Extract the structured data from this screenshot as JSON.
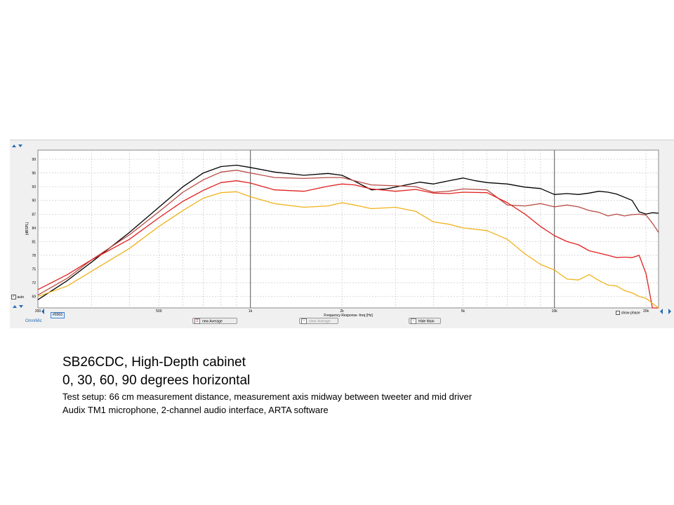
{
  "window": {
    "omnimic_label": "OmniMic",
    "auto_label": "auto",
    "mic_id": "#0363",
    "show_phase_label": "show phase",
    "buttons": {
      "new_average": "new Average",
      "clear_average": "clear Average",
      "hide_main": "Hide Main"
    }
  },
  "caption": {
    "title": "SB26CDC, High-Depth cabinet",
    "subtitle": "0, 30, 60, 90 degrees horizontal",
    "setup": "Test setup:  66 cm measurement distance, measurement  axis midway between tweeter and mid driver",
    "equipment": "Audix TM1 microphone,  2-channel audio interface, ARTA software"
  },
  "chart_data": {
    "type": "line",
    "title": "",
    "xlabel": "Frequency Response -freq [Hz]",
    "ylabel": "[dBSPL]",
    "x_scale": "log",
    "xlim": [
      200,
      22000
    ],
    "ylim": [
      66.5,
      101
    ],
    "x_ticks": [
      {
        "value": 200,
        "label": "200"
      },
      {
        "value": 500,
        "label": "500"
      },
      {
        "value": 1000,
        "label": "1k"
      },
      {
        "value": 2000,
        "label": "2k"
      },
      {
        "value": 5000,
        "label": "5k"
      },
      {
        "value": 10000,
        "label": "10k"
      },
      {
        "value": 20000,
        "label": "20k"
      }
    ],
    "y_ticks": [
      69,
      72,
      75,
      78,
      81,
      84,
      87,
      90,
      93,
      96,
      99
    ],
    "grid": true,
    "series": [
      {
        "key": "0deg",
        "color": "#000000",
        "points": [
          [
            200,
            68.3
          ],
          [
            250,
            72.5
          ],
          [
            300,
            76.5
          ],
          [
            400,
            83
          ],
          [
            500,
            88.5
          ],
          [
            600,
            93
          ],
          [
            700,
            96
          ],
          [
            800,
            97.4
          ],
          [
            900,
            97.7
          ],
          [
            1000,
            97.2
          ],
          [
            1200,
            96.2
          ],
          [
            1500,
            95.5
          ],
          [
            1800,
            95.9
          ],
          [
            2000,
            95.5
          ],
          [
            2200,
            94.2
          ],
          [
            2500,
            92.3
          ],
          [
            2800,
            92.5
          ],
          [
            3200,
            93.3
          ],
          [
            3600,
            94
          ],
          [
            4000,
            93.6
          ],
          [
            4500,
            94.3
          ],
          [
            5000,
            94.9
          ],
          [
            5500,
            94.3
          ],
          [
            6000,
            93.9
          ],
          [
            7000,
            93.6
          ],
          [
            8000,
            92.9
          ],
          [
            9000,
            92.6
          ],
          [
            10000,
            91.3
          ],
          [
            11000,
            91.5
          ],
          [
            12000,
            91.3
          ],
          [
            13000,
            91.6
          ],
          [
            14000,
            92
          ],
          [
            15000,
            91.8
          ],
          [
            16000,
            91.4
          ],
          [
            18000,
            90
          ],
          [
            19000,
            87.5
          ],
          [
            20000,
            87
          ],
          [
            21000,
            87.3
          ],
          [
            22000,
            87.2
          ]
        ]
      },
      {
        "key": "30deg",
        "color": "#b84b44",
        "points": [
          [
            200,
            69.3
          ],
          [
            250,
            73
          ],
          [
            300,
            77
          ],
          [
            400,
            82.5
          ],
          [
            500,
            87.5
          ],
          [
            600,
            91.8
          ],
          [
            700,
            94.5
          ],
          [
            800,
            96.2
          ],
          [
            900,
            96.6
          ],
          [
            1000,
            96
          ],
          [
            1200,
            95
          ],
          [
            1500,
            94.8
          ],
          [
            1800,
            95
          ],
          [
            2000,
            95
          ],
          [
            2200,
            94.3
          ],
          [
            2500,
            93.4
          ],
          [
            3000,
            93.2
          ],
          [
            3500,
            93
          ],
          [
            4000,
            91.8
          ],
          [
            4500,
            92
          ],
          [
            5000,
            92.5
          ],
          [
            6000,
            92.3
          ],
          [
            7000,
            89
          ],
          [
            8000,
            88.8
          ],
          [
            9000,
            89.3
          ],
          [
            10000,
            88.6
          ],
          [
            11000,
            89
          ],
          [
            12000,
            88.6
          ],
          [
            13000,
            87.8
          ],
          [
            14000,
            87.4
          ],
          [
            15000,
            86.6
          ],
          [
            16000,
            87
          ],
          [
            17000,
            86.6
          ],
          [
            18000,
            86.9
          ],
          [
            19000,
            87
          ],
          [
            20000,
            86.8
          ],
          [
            21000,
            85
          ],
          [
            22000,
            83
          ]
        ]
      },
      {
        "key": "60deg",
        "color": "#e0211f",
        "points": [
          [
            200,
            70.5
          ],
          [
            250,
            73.8
          ],
          [
            300,
            77
          ],
          [
            400,
            81.5
          ],
          [
            500,
            86.2
          ],
          [
            600,
            89.8
          ],
          [
            700,
            92.2
          ],
          [
            800,
            93.9
          ],
          [
            900,
            94.3
          ],
          [
            1000,
            93.8
          ],
          [
            1200,
            92.3
          ],
          [
            1500,
            92
          ],
          [
            1800,
            93.1
          ],
          [
            2000,
            93.6
          ],
          [
            2200,
            93.4
          ],
          [
            2500,
            92.5
          ],
          [
            3000,
            92
          ],
          [
            3500,
            92.4
          ],
          [
            4000,
            91.6
          ],
          [
            4500,
            91.5
          ],
          [
            5000,
            91.8
          ],
          [
            6000,
            91.7
          ],
          [
            7000,
            89.5
          ],
          [
            8000,
            87
          ],
          [
            9000,
            84.3
          ],
          [
            10000,
            82.3
          ],
          [
            11000,
            81
          ],
          [
            12000,
            80.3
          ],
          [
            13000,
            79
          ],
          [
            14000,
            78.5
          ],
          [
            15000,
            78
          ],
          [
            16000,
            77.5
          ],
          [
            17000,
            77.6
          ],
          [
            18000,
            77.5
          ],
          [
            19000,
            78
          ],
          [
            20000,
            74
          ],
          [
            21000,
            66.5
          ],
          [
            22000,
            66.5
          ]
        ]
      },
      {
        "key": "90deg",
        "color": "#f0b21a",
        "points": [
          [
            200,
            69
          ],
          [
            250,
            71.3
          ],
          [
            300,
            74.5
          ],
          [
            400,
            79.5
          ],
          [
            500,
            84.3
          ],
          [
            600,
            87.8
          ],
          [
            700,
            90.5
          ],
          [
            800,
            91.7
          ],
          [
            900,
            91.9
          ],
          [
            1000,
            90.8
          ],
          [
            1200,
            89.3
          ],
          [
            1500,
            88.5
          ],
          [
            1800,
            88.8
          ],
          [
            2000,
            89.5
          ],
          [
            2200,
            89
          ],
          [
            2500,
            88.2
          ],
          [
            3000,
            88.5
          ],
          [
            3500,
            87.6
          ],
          [
            4000,
            85.3
          ],
          [
            4500,
            84.8
          ],
          [
            5000,
            84
          ],
          [
            6000,
            83.4
          ],
          [
            7000,
            81.5
          ],
          [
            8000,
            78.3
          ],
          [
            9000,
            76
          ],
          [
            10000,
            74.8
          ],
          [
            11000,
            72.8
          ],
          [
            12000,
            72.6
          ],
          [
            13000,
            73.8
          ],
          [
            14000,
            72.5
          ],
          [
            15000,
            71.5
          ],
          [
            16000,
            71.3
          ],
          [
            17000,
            70.3
          ],
          [
            18000,
            69.8
          ],
          [
            19000,
            69
          ],
          [
            20000,
            68.6
          ],
          [
            21000,
            67.5
          ],
          [
            22000,
            66.5
          ]
        ]
      }
    ]
  }
}
